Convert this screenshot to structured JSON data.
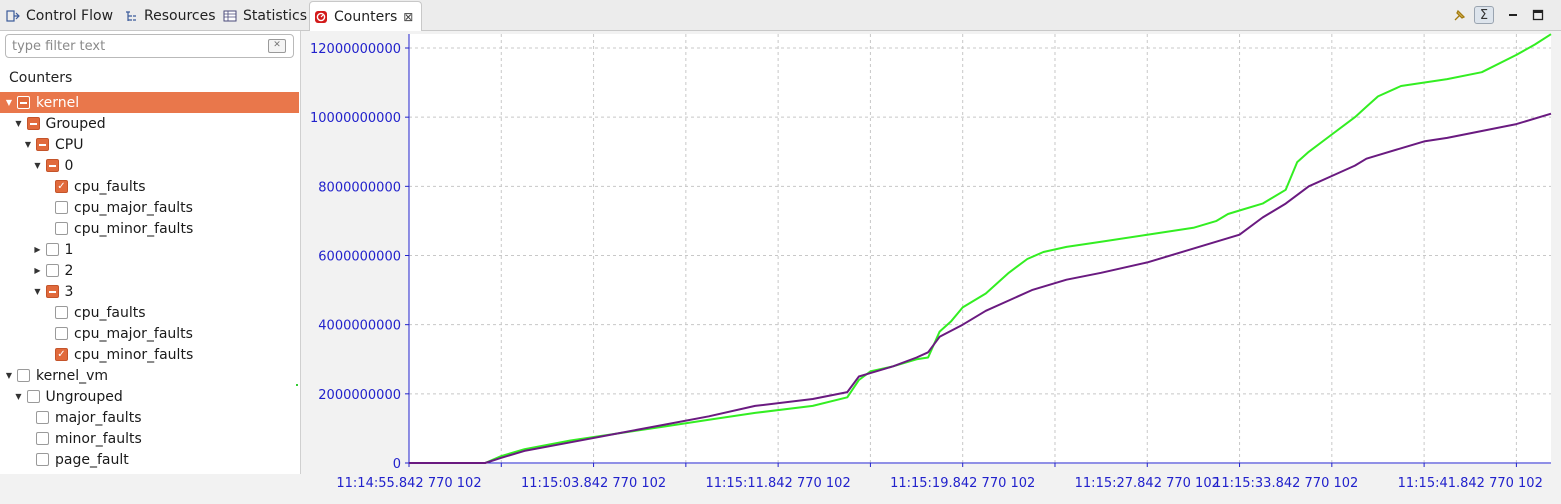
{
  "tabs": [
    {
      "label": "Control Flow",
      "icon": "control-flow-icon",
      "active": false
    },
    {
      "label": "Resources",
      "icon": "resources-icon",
      "active": false
    },
    {
      "label": "Statistics",
      "icon": "statistics-icon",
      "active": false
    },
    {
      "label": "Counters",
      "icon": "counters-icon",
      "active": true,
      "closable": true
    }
  ],
  "toolbar": {
    "buttons": [
      {
        "name": "pin-icon",
        "glyph": "✎"
      },
      {
        "name": "cumulative-sum-icon",
        "glyph": "Σ",
        "pressed": true
      },
      {
        "name": "minimize-icon",
        "glyph": "▁"
      },
      {
        "name": "maximize-icon",
        "glyph": "☐"
      }
    ]
  },
  "filter": {
    "placeholder": "type filter text",
    "value": ""
  },
  "tree": {
    "header": "Counters",
    "rows": [
      {
        "label": "kernel",
        "depth": 0,
        "arrow": "expanded",
        "check": "mixed",
        "selected": true
      },
      {
        "label": "Grouped",
        "depth": 1,
        "arrow": "expanded",
        "check": "mixed"
      },
      {
        "label": "CPU",
        "depth": 2,
        "arrow": "expanded",
        "check": "mixed"
      },
      {
        "label": "0",
        "depth": 3,
        "arrow": "expanded",
        "check": "mixed"
      },
      {
        "label": "cpu_faults",
        "depth": 4,
        "arrow": "none",
        "check": "checked"
      },
      {
        "label": "cpu_major_faults",
        "depth": 4,
        "arrow": "none",
        "check": "unchecked"
      },
      {
        "label": "cpu_minor_faults",
        "depth": 4,
        "arrow": "none",
        "check": "unchecked"
      },
      {
        "label": "1",
        "depth": 3,
        "arrow": "collapsed",
        "check": "unchecked"
      },
      {
        "label": "2",
        "depth": 3,
        "arrow": "collapsed",
        "check": "unchecked"
      },
      {
        "label": "3",
        "depth": 3,
        "arrow": "expanded",
        "check": "mixed"
      },
      {
        "label": "cpu_faults",
        "depth": 4,
        "arrow": "none",
        "check": "unchecked"
      },
      {
        "label": "cpu_major_faults",
        "depth": 4,
        "arrow": "none",
        "check": "unchecked"
      },
      {
        "label": "cpu_minor_faults",
        "depth": 4,
        "arrow": "none",
        "check": "checked"
      },
      {
        "label": "kernel_vm",
        "depth": 0,
        "arrow": "expanded",
        "check": "unchecked"
      },
      {
        "label": "Ungrouped",
        "depth": 1,
        "arrow": "expanded",
        "check": "unchecked"
      },
      {
        "label": "major_faults",
        "depth": 2,
        "arrow": "none",
        "check": "unchecked"
      },
      {
        "label": "minor_faults",
        "depth": 2,
        "arrow": "none",
        "check": "unchecked"
      },
      {
        "label": "page_fault",
        "depth": 2,
        "arrow": "none",
        "check": "unchecked"
      }
    ]
  },
  "colors": {
    "accent": "#e9774b",
    "series_green": "#33ee22",
    "series_purple": "#6a1a80",
    "axis": "#2222cc",
    "grid": "#c8c8c8"
  },
  "chart_data": {
    "type": "line",
    "title": "",
    "xlabel": "",
    "ylabel": "",
    "grid": true,
    "legend": "none",
    "ylim": [
      0,
      12000000000
    ],
    "yticks": [
      0,
      2000000000,
      4000000000,
      6000000000,
      8000000000,
      10000000000,
      12000000000
    ],
    "ytick_labels": [
      "0",
      "2000000000",
      "4000000000",
      "6000000000",
      "8000000000",
      "10000000000",
      "12000000000"
    ],
    "xlim": [
      0,
      49.5
    ],
    "xtick_labels": [
      {
        "value": 0,
        "label": "11:14:55.842 770 102"
      },
      {
        "value": 8,
        "label": "11:15:03.842 770 102"
      },
      {
        "value": 16,
        "label": "11:15:11.842 770 102"
      },
      {
        "value": 24,
        "label": "11:15:19.842 770 102"
      },
      {
        "value": 32,
        "label": "11:15:27.842 770 102"
      },
      {
        "value": 38,
        "label": "11:15:33.842 770 102"
      },
      {
        "value": 46,
        "label": "11:15:41.842 770 102"
      }
    ],
    "x_unit": "seconds after 11:14:55.842 770 102",
    "series": [
      {
        "color": "#33ee22",
        "x": [
          0,
          3.3,
          4.0,
          5.0,
          7.0,
          9.0,
          11.0,
          13.0,
          15.0,
          17.5,
          19.0,
          19.5,
          20.0,
          21.0,
          22.0,
          22.5,
          23.0,
          23.5,
          24.0,
          25.0,
          26.0,
          26.8,
          27.5,
          28.5,
          30.0,
          32.0,
          34.0,
          35.0,
          35.5,
          36.0,
          37.0,
          38.0,
          38.5,
          39.0,
          40.0,
          41.0,
          41.5,
          42.0,
          43.0,
          45.0,
          46.5,
          48.0,
          48.8,
          49.5
        ],
        "values": [
          0,
          0,
          200000000,
          400000000,
          650000000,
          850000000,
          1050000000,
          1250000000,
          1450000000,
          1650000000,
          1900000000,
          2400000000,
          2650000000,
          2800000000,
          3000000000,
          3050000000,
          3800000000,
          4100000000,
          4500000000,
          4900000000,
          5500000000,
          5900000000,
          6100000000,
          6250000000,
          6400000000,
          6600000000,
          6800000000,
          7000000000,
          7200000000,
          7300000000,
          7500000000,
          7900000000,
          8700000000,
          9000000000,
          9500000000,
          10000000000,
          10300000000,
          10600000000,
          10900000000,
          11100000000,
          11300000000,
          11800000000,
          12100000000,
          12400000000
        ]
      },
      {
        "color": "#6a1a80",
        "x": [
          0,
          3.3,
          4.0,
          5.0,
          7.0,
          9.0,
          11.0,
          13.0,
          15.0,
          17.5,
          19.0,
          19.5,
          20.0,
          21.0,
          22.0,
          22.5,
          23.0,
          24.0,
          25.0,
          26.0,
          27.0,
          28.5,
          30.0,
          32.0,
          34.0,
          36.0,
          37.0,
          38.0,
          39.0,
          40.0,
          41.0,
          41.5,
          42.0,
          43.0,
          44.0,
          45.0,
          46.5,
          48.0,
          49.5
        ],
        "values": [
          0,
          0,
          150000000,
          350000000,
          600000000,
          850000000,
          1100000000,
          1350000000,
          1650000000,
          1850000000,
          2050000000,
          2500000000,
          2600000000,
          2800000000,
          3050000000,
          3200000000,
          3650000000,
          4000000000,
          4400000000,
          4700000000,
          5000000000,
          5300000000,
          5500000000,
          5800000000,
          6200000000,
          6600000000,
          7100000000,
          7500000000,
          8000000000,
          8300000000,
          8600000000,
          8800000000,
          8900000000,
          9100000000,
          9300000000,
          9400000000,
          9600000000,
          9800000000,
          10100000000
        ]
      }
    ]
  }
}
